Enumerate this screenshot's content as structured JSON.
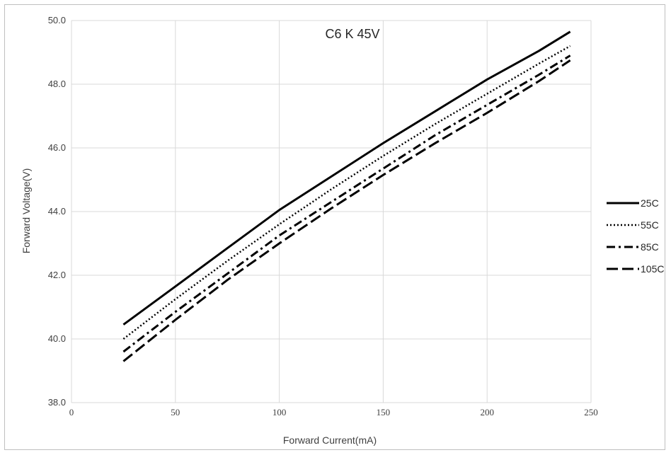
{
  "chart_data": {
    "type": "line",
    "title": "C6 K 45V",
    "xlabel": "Forward Current(mA)",
    "ylabel": "Forward Voltage(V)",
    "xlim": [
      0,
      250
    ],
    "ylim": [
      38.0,
      50.0
    ],
    "x_ticks": [
      0,
      50,
      100,
      150,
      200,
      250
    ],
    "y_ticks": [
      "38.0",
      "40.0",
      "42.0",
      "44.0",
      "46.0",
      "48.0",
      "50.0"
    ],
    "grid": true,
    "legend_position": "right",
    "x": [
      25,
      50,
      75,
      100,
      125,
      150,
      175,
      200,
      225,
      240
    ],
    "series": [
      {
        "name": "25C",
        "style": "solid",
        "values": [
          40.45,
          41.65,
          42.85,
          44.05,
          45.1,
          46.15,
          47.15,
          48.15,
          49.05,
          49.65
        ]
      },
      {
        "name": "55C",
        "style": "dotted",
        "values": [
          40.0,
          41.25,
          42.45,
          43.6,
          44.7,
          45.75,
          46.75,
          47.7,
          48.65,
          49.2
        ]
      },
      {
        "name": "85C",
        "style": "dashdot",
        "values": [
          39.6,
          40.85,
          42.05,
          43.25,
          44.3,
          45.35,
          46.4,
          47.35,
          48.3,
          48.9
        ]
      },
      {
        "name": "105C",
        "style": "longdash",
        "values": [
          39.3,
          40.6,
          41.85,
          43.0,
          44.1,
          45.15,
          46.15,
          47.1,
          48.1,
          48.75
        ]
      }
    ],
    "colors": {
      "line": "#000000",
      "grid": "#d9d9d9",
      "text": "#404040"
    }
  }
}
